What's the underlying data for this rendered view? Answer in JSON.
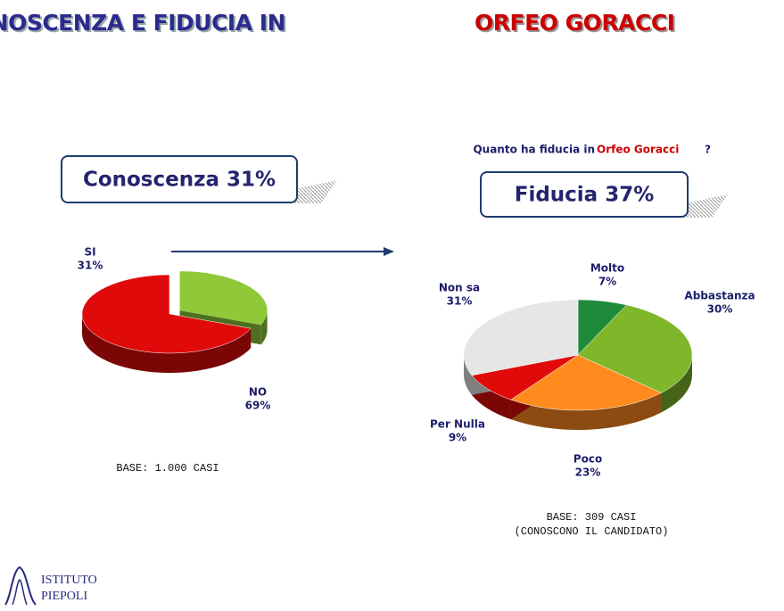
{
  "header": {
    "title": "CONOSCENZA E FIDUCIA IN",
    "title_highlight": "ORFEO GORACCI"
  },
  "question": {
    "text": "Quanto ha fiducia in",
    "highlight": "Orfeo Goracci",
    "end": "?"
  },
  "boxes": [
    "Conoscenza 31%",
    "Fiducia 37%"
  ],
  "chart_data": [
    {
      "type": "pie",
      "categories": [
        "SI",
        "NO"
      ],
      "values": [
        31,
        69
      ],
      "value_labels": [
        "31%",
        "69%"
      ],
      "colors": [
        "#8fc93a",
        "#e00a0a"
      ],
      "note": [
        "BASE: 1.000 CASI"
      ]
    },
    {
      "type": "pie",
      "categories": [
        "Molto",
        "Abbastanza",
        "Poco",
        "Per Nulla",
        "Non sa"
      ],
      "values": [
        7,
        30,
        23,
        9,
        31
      ],
      "value_labels": [
        "7%",
        "30%",
        "23%",
        "9%",
        "31%"
      ],
      "colors": [
        "#1f8a3a",
        "#7fb62a",
        "#ff8a1e",
        "#e00a0a",
        "#e6e6e6"
      ],
      "note": [
        "BASE: 309 CASI",
        "(CONOSCONO IL CANDIDATO)"
      ]
    }
  ],
  "logo": [
    "ISTITUTO",
    "PIEPOLI"
  ]
}
